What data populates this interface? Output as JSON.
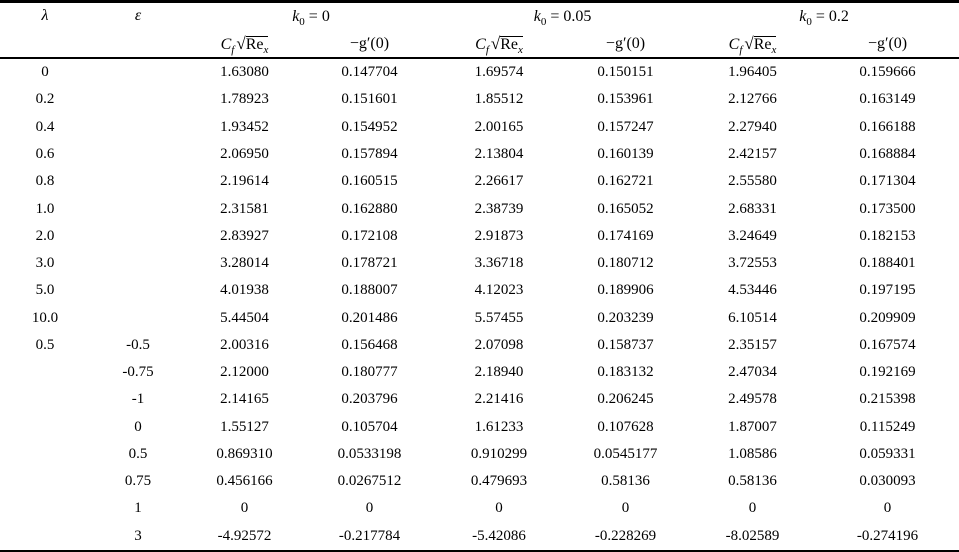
{
  "table": {
    "col_lambda": "λ",
    "col_epsilon": "ε",
    "k_symbol": "k",
    "k_sub": "0",
    "groups": [
      {
        "eq": " = 0"
      },
      {
        "eq": " = 0.05"
      },
      {
        "eq": " = 0.2"
      }
    ],
    "cf": {
      "C": "C",
      "f": "f",
      "sqrt": "√",
      "re": "Re",
      "x": "x"
    },
    "gprime": "−g′(0)",
    "rows": [
      [
        "0",
        "",
        "1.63080",
        "0.147704",
        "1.69574",
        "0.150151",
        "1.96405",
        "0.159666"
      ],
      [
        "0.2",
        "",
        "1.78923",
        "0.151601",
        "1.85512",
        "0.153961",
        "2.12766",
        "0.163149"
      ],
      [
        "0.4",
        "",
        "1.93452",
        "0.154952",
        "2.00165",
        "0.157247",
        "2.27940",
        "0.166188"
      ],
      [
        "0.6",
        "",
        "2.06950",
        "0.157894",
        "2.13804",
        "0.160139",
        "2.42157",
        "0.168884"
      ],
      [
        "0.8",
        "",
        "2.19614",
        "0.160515",
        "2.26617",
        "0.162721",
        "2.55580",
        "0.171304"
      ],
      [
        "1.0",
        "",
        "2.31581",
        "0.162880",
        "2.38739",
        "0.165052",
        "2.68331",
        "0.173500"
      ],
      [
        "2.0",
        "",
        "2.83927",
        "0.172108",
        "2.91873",
        "0.174169",
        "3.24649",
        "0.182153"
      ],
      [
        "3.0",
        "",
        "3.28014",
        "0.178721",
        "3.36718",
        "0.180712",
        "3.72553",
        "0.188401"
      ],
      [
        "5.0",
        "",
        "4.01938",
        "0.188007",
        "4.12023",
        "0.189906",
        "4.53446",
        "0.197195"
      ],
      [
        "10.0",
        "",
        "5.44504",
        "0.201486",
        "5.57455",
        "0.203239",
        "6.10514",
        "0.209909"
      ],
      [
        "0.5",
        "-0.5",
        "2.00316",
        "0.156468",
        "2.07098",
        "0.158737",
        "2.35157",
        "0.167574"
      ],
      [
        "",
        "-0.75",
        "2.12000",
        "0.180777",
        "2.18940",
        "0.183132",
        "2.47034",
        "0.192169"
      ],
      [
        "",
        "-1",
        "2.14165",
        "0.203796",
        "2.21416",
        "0.206245",
        "2.49578",
        "0.215398"
      ],
      [
        "",
        "0",
        "1.55127",
        "0.105704",
        "1.61233",
        "0.107628",
        "1.87007",
        "0.115249"
      ],
      [
        "",
        "0.5",
        "0.869310",
        "0.0533198",
        "0.910299",
        "0.0545177",
        "1.08586",
        "0.059331"
      ],
      [
        "",
        "0.75",
        "0.456166",
        "0.0267512",
        "0.479693",
        "0.58136",
        "0.58136",
        "0.030093"
      ],
      [
        "",
        "1",
        "0",
        "0",
        "0",
        "0",
        "0",
        "0"
      ],
      [
        "",
        "3",
        "-4.92572",
        "-0.217784",
        "-5.42086",
        "-0.228269",
        "-8.02589",
        "-0.274196"
      ]
    ]
  }
}
